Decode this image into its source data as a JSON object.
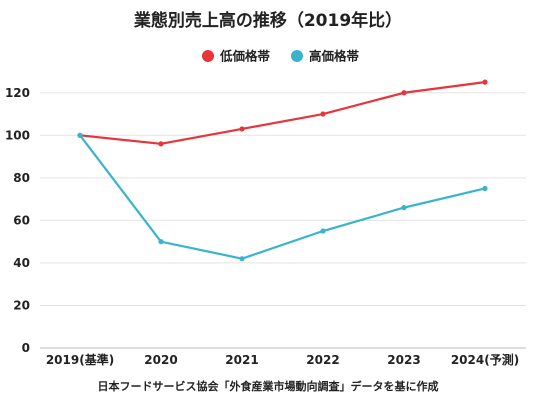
{
  "chart_data": {
    "type": "line",
    "title": "業態別売上高の推移（2019年比）",
    "categories": [
      "2019(基準)",
      "2020",
      "2021",
      "2022",
      "2023",
      "2024(予測)"
    ],
    "series": [
      {
        "name": "低価格帯",
        "color": "#e8343a",
        "values": [
          100,
          96,
          103,
          110,
          120,
          125
        ]
      },
      {
        "name": "高価格帯",
        "color": "#3ab4cc",
        "values": [
          100,
          50,
          42,
          55,
          66,
          75
        ]
      }
    ],
    "yticks": [
      0,
      20,
      40,
      60,
      80,
      100,
      120
    ],
    "ylim": [
      0,
      126
    ],
    "grid": true,
    "legend_position": "top-center",
    "source": "日本フードサービス協会「外食産業市場動向調査」データを基に作成"
  }
}
